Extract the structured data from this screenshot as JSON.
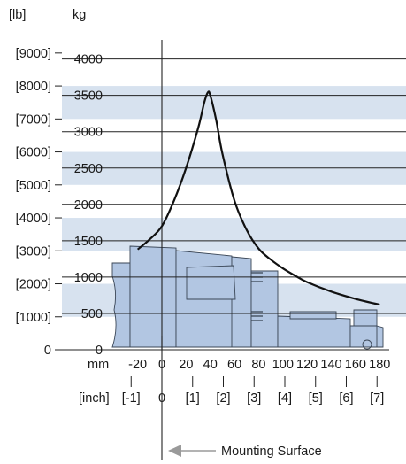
{
  "colors": {
    "band": "#d7e2ef",
    "part_fill": "#b2c6e2",
    "part_stroke": "#3a4656",
    "curve": "#111111",
    "grid": "#222222",
    "arrow": "#9a9a9a"
  },
  "chart_data": {
    "type": "line",
    "units": {
      "left_label": "[lb]",
      "right_label": "kg"
    },
    "y_kg_ticks": [
      "0",
      "500",
      "1000",
      "1500",
      "2000",
      "2500",
      "3000",
      "3500",
      "4000"
    ],
    "y_kg_values": [
      0,
      500,
      1000,
      1500,
      2000,
      2500,
      3000,
      3500,
      4000
    ],
    "y_lb_ticks": [
      "0",
      "[1000]",
      "[2000]",
      "[3000]",
      "[4000]",
      "[5000]",
      "[6000]",
      "[7000]",
      "[8000]",
      "[9000]"
    ],
    "y_lb_values": [
      0,
      1000,
      2000,
      3000,
      4000,
      5000,
      6000,
      7000,
      8000,
      9000
    ],
    "x_mm_unit": "mm",
    "x_mm_ticks": [
      "-20",
      "0",
      "20",
      "40",
      "60",
      "80",
      "100",
      "120",
      "140",
      "160",
      "180"
    ],
    "x_mm_values": [
      -20,
      0,
      20,
      40,
      60,
      80,
      100,
      120,
      140,
      160,
      180
    ],
    "x_inch_unit": "[inch]",
    "x_inch_ticks": [
      "[-1]",
      "0",
      "[1]",
      "[2]",
      "[3]",
      "[4]",
      "[5]",
      "[6]",
      "[7]"
    ],
    "x_inch_values": [
      -1,
      0,
      1,
      2,
      3,
      4,
      5,
      6,
      7
    ],
    "ylim_kg": [
      0,
      4100
    ],
    "xlim_mm": [
      -31,
      186
    ],
    "series": [
      {
        "x_mm": [
          -20,
          -10,
          0,
          10,
          20,
          30,
          35,
          38,
          40,
          45,
          50,
          60,
          70,
          80,
          90,
          100,
          110,
          120,
          140,
          160,
          180
        ],
        "y_kg": [
          1380,
          1520,
          1700,
          2050,
          2500,
          3050,
          3400,
          3540,
          3500,
          3150,
          2700,
          2050,
          1650,
          1390,
          1240,
          1120,
          1020,
          930,
          800,
          700,
          620
        ]
      }
    ],
    "annotation": "Mounting Surface"
  }
}
